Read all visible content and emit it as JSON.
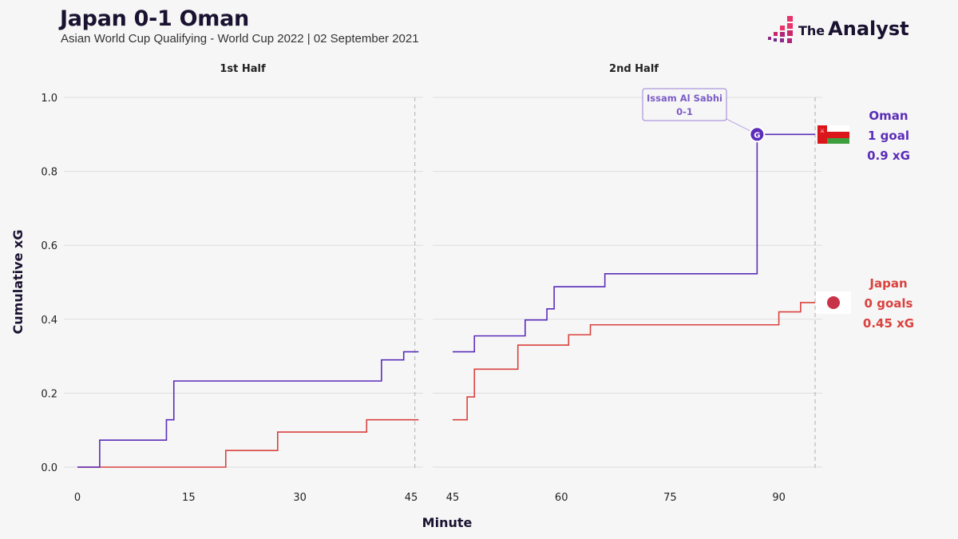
{
  "header": {
    "title": "Japan 0-1 Oman",
    "subtitle": "Asian World Cup Qualifying - World Cup 2022 | 02 September 2021"
  },
  "brand": {
    "the": "The",
    "name": "Analyst",
    "accent": "#e8336b"
  },
  "colors": {
    "oman": "#5b2dba",
    "japan": "#d9423f",
    "grid": "#dddddd",
    "background": "#f6f6f6"
  },
  "chart_data": {
    "type": "line",
    "step": true,
    "xlabel": "Minute",
    "ylabel": "Cumulative xG",
    "ylim": [
      0,
      1.0
    ],
    "yticks": [
      "0.0",
      "0.2",
      "0.4",
      "0.6",
      "0.8",
      "1.0"
    ],
    "grid": true,
    "panels": [
      {
        "title": "1st Half",
        "xlim": [
          0,
          45
        ],
        "xticks": [
          "0",
          "15",
          "30",
          "45"
        ],
        "end_marker": 45.5,
        "series": [
          {
            "name": "Oman",
            "points": [
              [
                0,
                0
              ],
              [
                3,
                0.073
              ],
              [
                12,
                0.128
              ],
              [
                13,
                0.233
              ],
              [
                41,
                0.29
              ],
              [
                44,
                0.312
              ],
              [
                46,
                0.312
              ]
            ]
          },
          {
            "name": "Japan",
            "points": [
              [
                0,
                0
              ],
              [
                20,
                0.045
              ],
              [
                27,
                0.095
              ],
              [
                39,
                0.128
              ],
              [
                46,
                0.128
              ]
            ]
          }
        ]
      },
      {
        "title": "2nd Half",
        "xlim": [
          45,
          95
        ],
        "xticks": [
          "45",
          "60",
          "75",
          "90"
        ],
        "end_marker": 95,
        "series": [
          {
            "name": "Oman",
            "points": [
              [
                45,
                0.312
              ],
              [
                48,
                0.355
              ],
              [
                55,
                0.398
              ],
              [
                58,
                0.428
              ],
              [
                59,
                0.488
              ],
              [
                66,
                0.523
              ],
              [
                87,
                0.9
              ],
              [
                95,
                0.9
              ]
            ]
          },
          {
            "name": "Japan",
            "points": [
              [
                45,
                0.128
              ],
              [
                47,
                0.19
              ],
              [
                48,
                0.265
              ],
              [
                54,
                0.33
              ],
              [
                61,
                0.358
              ],
              [
                64,
                0.385
              ],
              [
                90,
                0.42
              ],
              [
                93,
                0.445
              ],
              [
                95,
                0.445
              ]
            ]
          }
        ],
        "goal": {
          "minute": 87,
          "xg": 0.9,
          "team": "Oman",
          "marker": "G",
          "player": "Issam Al Sabhi",
          "score": "0-1"
        }
      }
    ],
    "summary": [
      {
        "team": "Oman",
        "goals": "1 goal",
        "xg": "0.9 xG",
        "flag": "oman-flag-icon"
      },
      {
        "team": "Japan",
        "goals": "0 goals",
        "xg": "0.45 xG",
        "flag": "japan-flag-icon"
      }
    ]
  }
}
